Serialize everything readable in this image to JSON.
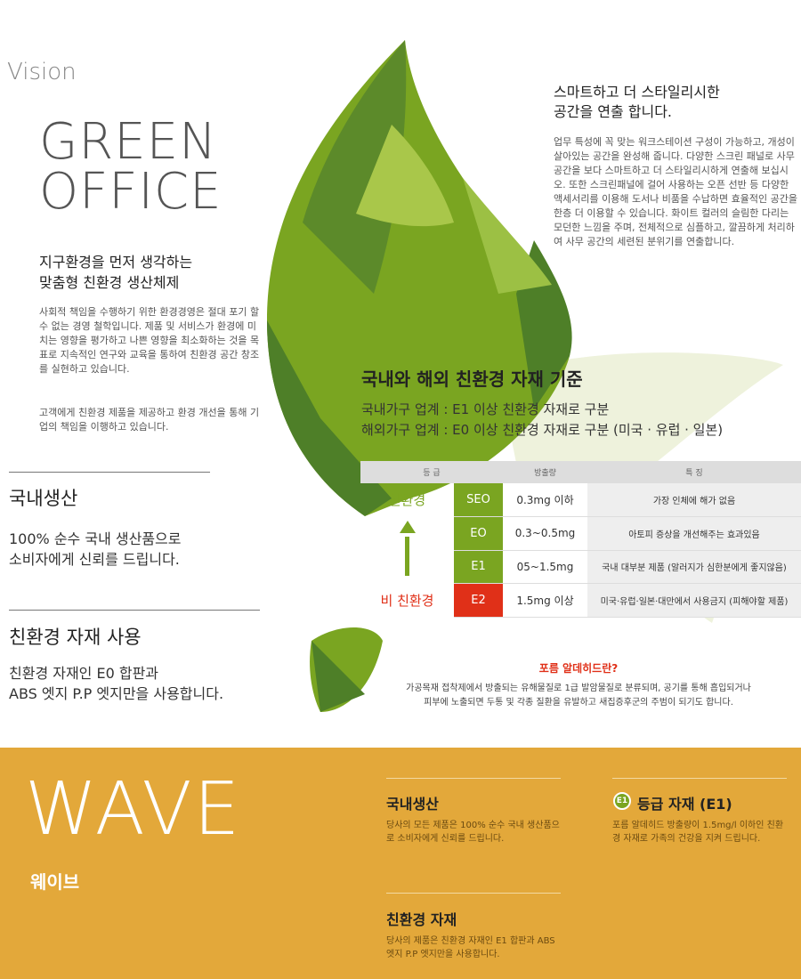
{
  "vision": "Vision",
  "title": [
    "GREEN",
    "OFFICE"
  ],
  "left": {
    "subtitle": [
      "지구환경을 먼저 생각하는",
      "맞춤형 친환경 생산체제"
    ],
    "para1": "사회적 책임을 수행하기 위한 환경경영은 절대 포기 할 수 없는 경영 철학입니다. 제품 및 서비스가 환경에 미치는 영향을 평가하고 나쁜 영향을 최소화하는 것을 목표로 지속적인 연구와 교육을 통하여 친환경 공간 창조를 실현하고 있습니다.",
    "para2": "고객에게 친환경 제품을 제공하고 환경 개선을 통해 기업의 책임을 이행하고 있습니다.",
    "s1_title": "국내생산",
    "s1_text": [
      "100% 순수 국내 생산품으로",
      "소비자에게 신뢰를 드립니다."
    ],
    "s2_title": "친환경 자재 사용",
    "s2_text": [
      "친환경 자재인 E0 합판과",
      "ABS 엣지 P.P 엣지만을 사용합니다."
    ]
  },
  "right": {
    "title": [
      "스마트하고 더 스타일리시한",
      "공간을 연출 합니다."
    ],
    "text": "업무 특성에 꼭 맞는 워크스테이션 구성이 가능하고, 개성이 살아있는 공간을 완성해 줍니다. 다양한 스크린 패널로 사무 공간을 보다 스마트하고 더 스타일리시하게 연출해 보십시오. 또한 스크린패널에 걸어 사용하는 오픈 선반 등 다양한 액세서리를 이용해 도서나 비품을 수납하면 효율적인 공간을 한층 더 이용할 수 있습니다. 화이트 컬러의 슬림한 다리는 모던한 느낌을 주며, 전체적으로 심플하고, 깔끔하게 처리하여 사무 공간의 세련된 분위기를 연출합니다."
  },
  "standard": {
    "title": "국내와 해외 친환경 자재 기준",
    "lines": [
      "국내가구 업계 : E1 이상 친환경 자재로 구분",
      "해외가구 업계 : E0 이상 친환경 자재로 구분 (미국 · 유럽 · 일본)"
    ],
    "headers": [
      "등 급",
      "방출량",
      "특 징"
    ],
    "eco_label": "친환경",
    "non_eco_label": "비 친환경",
    "rows": [
      {
        "grade": "SEO",
        "amount": "0.3mg 이하",
        "feature": "가장 인체에 해가 없음"
      },
      {
        "grade": "EO",
        "amount": "0.3~0.5mg",
        "feature": "아토피 증상을 개선해주는 효과있음"
      },
      {
        "grade": "E1",
        "amount": "05~1.5mg",
        "feature": "국내 대부분 제품 (알러지가 심한분에게 좋지않음)"
      },
      {
        "grade": "E2",
        "amount": "1.5mg 이상",
        "feature": "미국·유럽·일본·대만에서 사용금지 (피해야할 제품)"
      }
    ],
    "q_title": "포름 알데히드란?",
    "q_text": [
      "가공목재 접착제에서 방출되는 유해물질로 1급 발암물질로 분류되며, 공기를 통해 흡입되거나",
      "피부에 노출되면 두통 및 각종 질환을 유발하고 새집증후군의 주범이 되기도 합니다."
    ]
  },
  "wave": {
    "title": "WAVE",
    "subtitle": "웨이브",
    "c1_title": "국내생산",
    "c1_text": "당사의 모든 제품은 100% 순수 국내 생산품으로 소비자에게 신뢰를 드립니다.",
    "c2_badge": "E1",
    "c2_title": "등급 자재 (E1)",
    "c2_text": "포름 알데히드 방출량이 1.5mg/l 이하인 친환경 자재로 가족의 건강을 지켜 드립니다.",
    "c3_title": "친환경 자재",
    "c3_text": "당사의 제품은 친환경 자재인 E1 합판과 ABS 엣지 P.P 엣지만을 사용합니다."
  },
  "colors": {
    "green": "#7aa521",
    "red": "#e03018",
    "orange": "#e3a83a"
  }
}
